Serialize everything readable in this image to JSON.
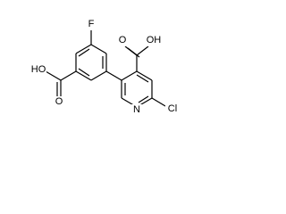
{
  "atoms": [
    {
      "label": "F"
    },
    {
      "label": "HO"
    },
    {
      "label": "O"
    },
    {
      "label": "O"
    },
    {
      "label": "OH"
    },
    {
      "label": "N"
    },
    {
      "label": "Cl"
    }
  ]
}
